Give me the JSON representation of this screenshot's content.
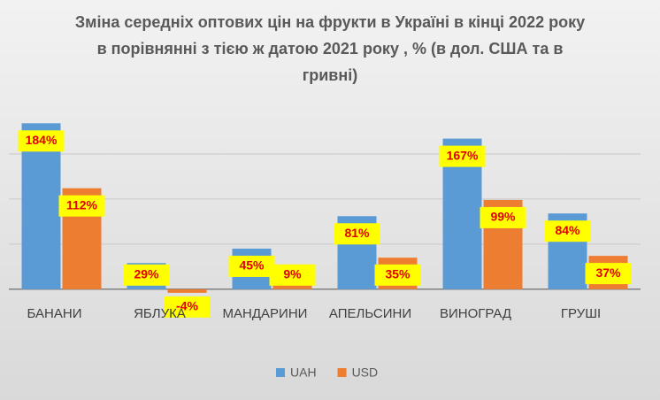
{
  "chart_data": {
    "type": "bar",
    "title": "Зміна середніх оптових цін на фрукти в Україні в кінці 2022 року в порівнянні з тією ж датою 2021 року , % (в дол. США та в гривні)",
    "categories": [
      "БАНАНИ",
      "ЯБЛУКА",
      "МАНДАРИНИ",
      "АПЕЛЬСИНИ",
      "ВИНОГРАД",
      "ГРУШІ"
    ],
    "series": [
      {
        "name": "UAH",
        "color": "#5b9bd5",
        "values": [
          184,
          29,
          45,
          81,
          167,
          84
        ],
        "value_labels": [
          "184%",
          "29%",
          "45%",
          "81%",
          "167%",
          "84%"
        ]
      },
      {
        "name": "USD",
        "color": "#ed7d31",
        "values": [
          112,
          -4,
          9,
          35,
          99,
          37
        ],
        "value_labels": [
          "112%",
          "-4%",
          "9%",
          "35%",
          "99%",
          "37%"
        ]
      }
    ],
    "ylim": [
      -10,
      200
    ],
    "yticks": [
      0,
      50,
      100,
      150
    ],
    "grid": true,
    "legend": "bottom"
  }
}
